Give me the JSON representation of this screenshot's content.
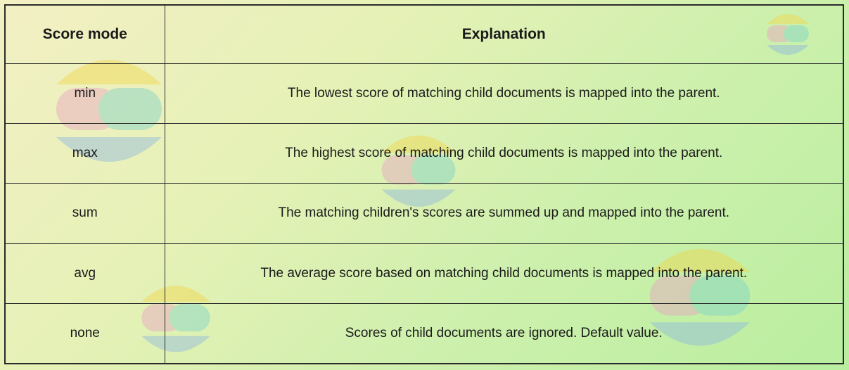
{
  "table": {
    "headers": {
      "mode": "Score mode",
      "explanation": "Explanation"
    },
    "rows": [
      {
        "mode": "min",
        "explanation": "The lowest score of matching child documents is mapped into the parent."
      },
      {
        "mode": "max",
        "explanation": "The highest score of matching child documents is mapped into the parent."
      },
      {
        "mode": "sum",
        "explanation": "The matching children's scores are summed up and mapped into the parent."
      },
      {
        "mode": "avg",
        "explanation": "The average score based on matching child documents is mapped into the parent."
      },
      {
        "mode": "none",
        "explanation": "Scores of child documents are ignored. Default value."
      }
    ]
  },
  "colors": {
    "border": "#2b2b2b",
    "logo_yellow": "#f2d64b",
    "logo_teal": "#7fd3c9",
    "logo_blue": "#8fb8e0",
    "logo_pink": "#e9a4c4"
  },
  "decorations": {
    "watermark_icon": "elastic-logo-icon"
  }
}
